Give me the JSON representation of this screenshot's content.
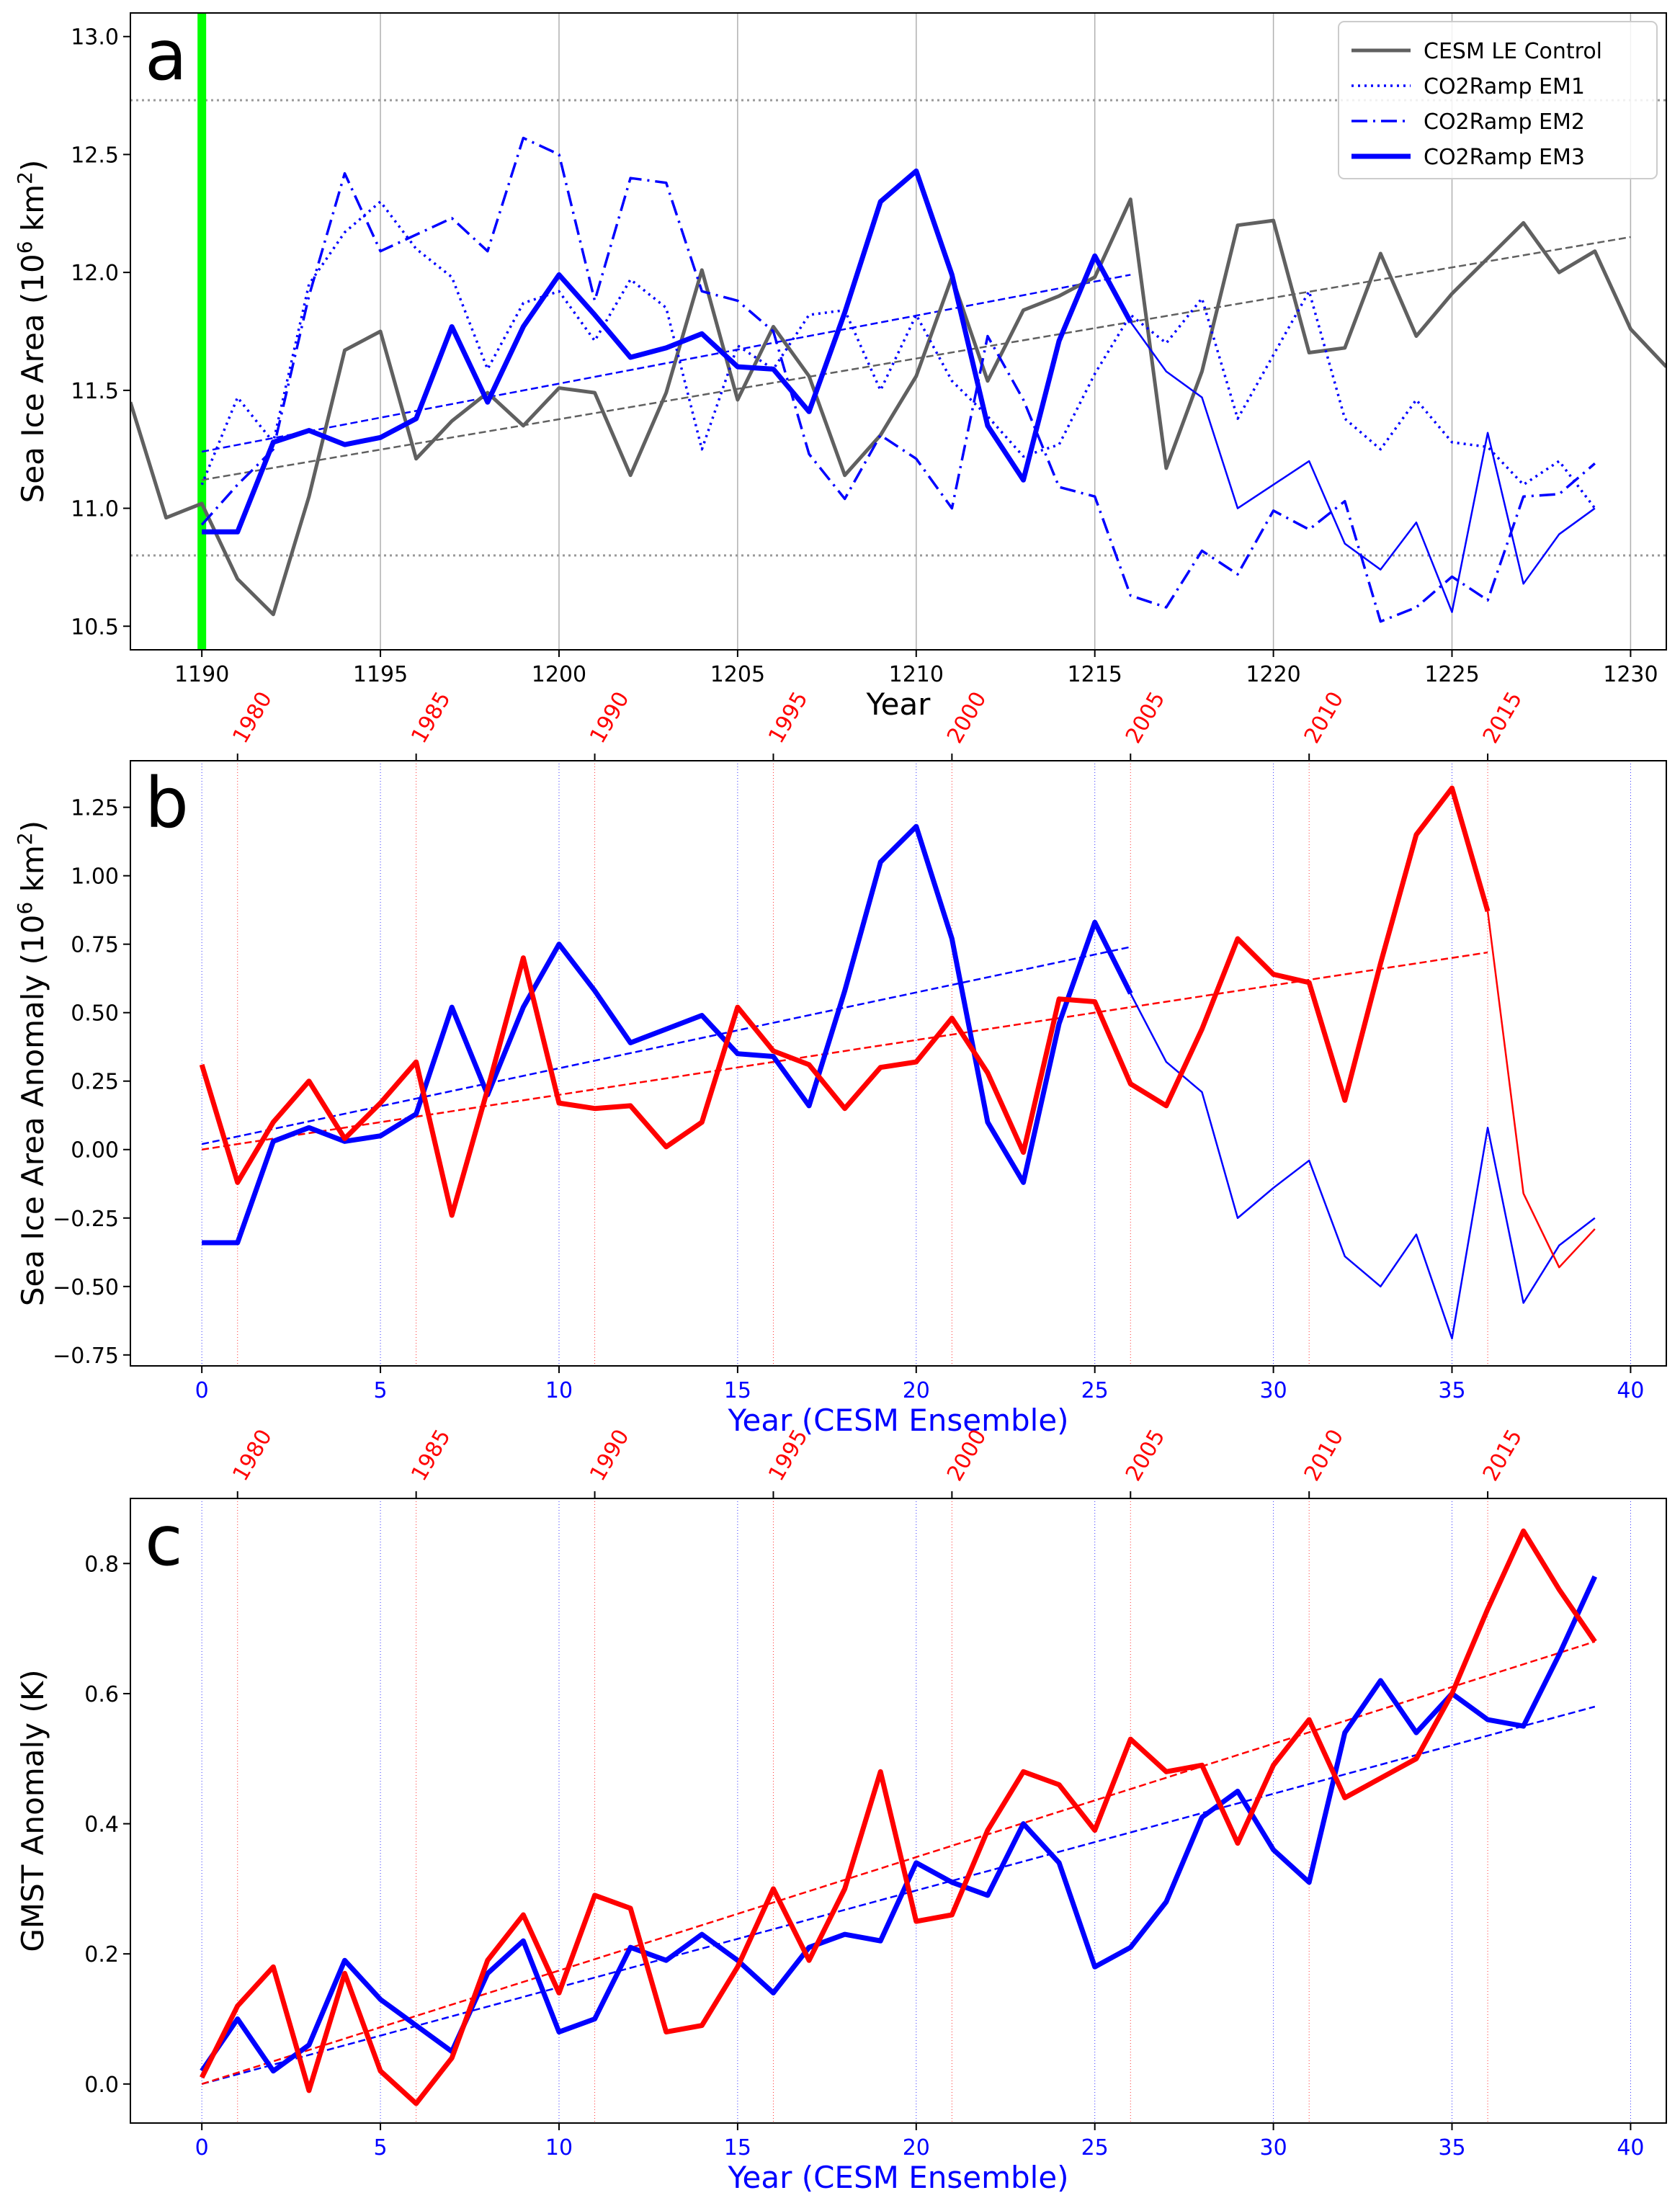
{
  "colors": {
    "control": "#606060",
    "blue": "#0000ff",
    "red": "#ff0000",
    "green": "#00ff00",
    "dotted_gray": "#999999",
    "grid": "#b0b0b0"
  },
  "chart_data": [
    {
      "panel": "a",
      "type": "line",
      "xlabel": "Year",
      "ylabel": "Sea Ice Area (10⁶ km²)",
      "ylabel_base": "Sea Ice Area (10",
      "ylabel_sup": "6",
      "ylabel_mid": " km",
      "ylabel_sup2": "2",
      "ylabel_end": ")",
      "xlim": [
        1188,
        1231
      ],
      "ylim": [
        10.4,
        13.1
      ],
      "xticks": [
        1190,
        1195,
        1200,
        1205,
        1210,
        1215,
        1220,
        1225,
        1230
      ],
      "yticks": [
        10.5,
        11.0,
        11.5,
        12.0,
        12.5,
        13.0
      ],
      "ytick_labels": [
        "10.5",
        "11.0",
        "11.5",
        "12.0",
        "12.5",
        "13.0"
      ],
      "grid": "vertical",
      "legend_position": "top-right",
      "vline_green": 1190,
      "hlines_dotted": [
        12.73,
        10.8
      ],
      "series": [
        {
          "name": "CESM LE Control",
          "style": "solid",
          "color": "control",
          "x": [
            1188,
            1189,
            1190,
            1191,
            1192,
            1193,
            1194,
            1195,
            1196,
            1197,
            1198,
            1199,
            1200,
            1201,
            1202,
            1203,
            1204,
            1205,
            1206,
            1207,
            1208,
            1209,
            1210,
            1211,
            1212,
            1213,
            1214,
            1215,
            1216,
            1217,
            1218,
            1219,
            1220,
            1221,
            1222,
            1223,
            1224,
            1225,
            1226,
            1227,
            1228,
            1229,
            1230,
            1231
          ],
          "y": [
            11.45,
            10.96,
            11.02,
            10.7,
            10.55,
            11.05,
            11.67,
            11.75,
            11.21,
            11.37,
            11.49,
            11.35,
            11.51,
            11.49,
            11.14,
            11.49,
            12.01,
            11.46,
            11.77,
            11.56,
            11.14,
            11.31,
            11.56,
            11.98,
            11.54,
            11.84,
            11.9,
            11.98,
            12.31,
            11.17,
            11.58,
            12.2,
            12.22,
            11.66,
            11.68,
            12.08,
            11.73,
            11.91,
            12.06,
            12.21,
            12.0,
            12.09,
            11.76,
            11.6
          ]
        },
        {
          "name": "CO2Ramp EM1",
          "style": "dotted",
          "color": "blue",
          "x": [
            1190,
            1191,
            1192,
            1193,
            1194,
            1195,
            1196,
            1197,
            1198,
            1199,
            1200,
            1201,
            1202,
            1203,
            1204,
            1205,
            1206,
            1207,
            1208,
            1209,
            1210,
            1211,
            1212,
            1213,
            1214,
            1215,
            1216,
            1217,
            1218,
            1219,
            1220,
            1221,
            1222,
            1223,
            1224,
            1225,
            1226,
            1227,
            1228,
            1229
          ],
          "y": [
            11.1,
            11.47,
            11.28,
            11.95,
            12.17,
            12.3,
            12.1,
            11.98,
            11.59,
            11.87,
            11.92,
            11.71,
            11.97,
            11.85,
            11.25,
            11.69,
            11.59,
            11.82,
            11.84,
            11.5,
            11.82,
            11.54,
            11.39,
            11.22,
            11.27,
            11.57,
            11.82,
            11.7,
            11.89,
            11.38,
            11.65,
            11.92,
            11.38,
            11.25,
            11.46,
            11.28,
            11.26,
            11.1,
            11.2,
            11.0
          ]
        },
        {
          "name": "CO2Ramp EM2",
          "style": "dashdot",
          "color": "blue",
          "x": [
            1190,
            1191,
            1192,
            1193,
            1194,
            1195,
            1196,
            1197,
            1198,
            1199,
            1200,
            1201,
            1202,
            1203,
            1204,
            1205,
            1206,
            1207,
            1208,
            1209,
            1210,
            1211,
            1212,
            1213,
            1214,
            1215,
            1216,
            1217,
            1218,
            1219,
            1220,
            1221,
            1222,
            1223,
            1224,
            1225,
            1226,
            1227,
            1228,
            1229
          ],
          "y": [
            10.93,
            11.1,
            11.25,
            11.9,
            12.42,
            12.09,
            12.16,
            12.23,
            12.09,
            12.57,
            12.5,
            11.88,
            12.4,
            12.38,
            11.92,
            11.88,
            11.75,
            11.23,
            11.04,
            11.31,
            11.21,
            11.0,
            11.73,
            11.46,
            11.09,
            11.05,
            10.63,
            10.58,
            10.82,
            10.72,
            10.99,
            10.91,
            11.03,
            10.52,
            10.58,
            10.71,
            10.61,
            11.05,
            11.06,
            11.19
          ]
        },
        {
          "name": "CO2Ramp EM3",
          "style": "thick",
          "color": "blue",
          "thick_until": 1216,
          "x": [
            1190,
            1191,
            1192,
            1193,
            1194,
            1195,
            1196,
            1197,
            1198,
            1199,
            1200,
            1201,
            1202,
            1203,
            1204,
            1205,
            1206,
            1207,
            1208,
            1209,
            1210,
            1211,
            1212,
            1213,
            1214,
            1215,
            1216,
            1217,
            1218,
            1219,
            1220,
            1221,
            1222,
            1223,
            1224,
            1225,
            1226,
            1227,
            1228,
            1229
          ],
          "y": [
            10.9,
            10.9,
            11.28,
            11.33,
            11.27,
            11.3,
            11.38,
            11.77,
            11.45,
            11.77,
            11.99,
            11.82,
            11.64,
            11.68,
            11.74,
            11.6,
            11.59,
            11.41,
            11.83,
            12.3,
            12.43,
            11.99,
            11.35,
            11.12,
            11.71,
            12.07,
            11.79,
            11.58,
            11.47,
            11.0,
            11.1,
            11.2,
            10.85,
            10.74,
            10.94,
            10.56,
            11.32,
            10.68,
            10.89,
            11.0
          ]
        }
      ],
      "trendlines": [
        {
          "color": "control",
          "x": [
            1190,
            1230
          ],
          "y": [
            11.12,
            12.15
          ]
        },
        {
          "color": "blue",
          "x": [
            1190,
            1216
          ],
          "y": [
            11.24,
            11.99
          ]
        }
      ]
    },
    {
      "panel": "b",
      "type": "line",
      "xlabel": "Year (CESM Ensemble)",
      "ylabel": "Sea Ice Area Anomaly (10⁶ km²)",
      "ylabel_base": "Sea Ice Area Anomaly (10",
      "ylabel_sup": "6",
      "ylabel_mid": " km",
      "ylabel_sup2": "2",
      "ylabel_end": ")",
      "xlim": [
        -2,
        41
      ],
      "ylim": [
        -0.79,
        1.42
      ],
      "xticks": [
        0,
        5,
        10,
        15,
        20,
        25,
        30,
        35,
        40
      ],
      "yticks": [
        -0.75,
        -0.5,
        -0.25,
        0.0,
        0.25,
        0.5,
        0.75,
        1.0,
        1.25
      ],
      "ytick_labels": [
        "−0.75",
        "−0.50",
        "−0.25",
        "0.00",
        "0.25",
        "0.50",
        "0.75",
        "1.00",
        "1.25"
      ],
      "top_axis_labels": [
        "1980",
        "1985",
        "1990",
        "1995",
        "2000",
        "2005",
        "2010",
        "2015"
      ],
      "top_axis_positions": [
        1,
        6,
        11,
        16,
        21,
        26,
        31,
        36
      ],
      "series": [
        {
          "color": "blue",
          "thick_until": 26,
          "x": [
            0,
            1,
            2,
            3,
            4,
            5,
            6,
            7,
            8,
            9,
            10,
            11,
            12,
            13,
            14,
            15,
            16,
            17,
            18,
            19,
            20,
            21,
            22,
            23,
            24,
            25,
            26,
            27,
            28,
            29,
            30,
            31,
            32,
            33,
            34,
            35,
            36,
            37,
            38,
            39
          ],
          "y": [
            -0.34,
            -0.34,
            0.03,
            0.08,
            0.03,
            0.05,
            0.13,
            0.52,
            0.2,
            0.52,
            0.75,
            0.58,
            0.39,
            0.44,
            0.49,
            0.35,
            0.34,
            0.16,
            0.58,
            1.05,
            1.18,
            0.77,
            0.1,
            -0.12,
            0.46,
            0.83,
            0.57,
            0.32,
            0.21,
            -0.25,
            -0.14,
            -0.04,
            -0.39,
            -0.5,
            -0.31,
            -0.69,
            0.08,
            -0.56,
            -0.35,
            -0.25
          ]
        },
        {
          "color": "red",
          "thick_until": 36,
          "x": [
            0,
            1,
            2,
            3,
            4,
            5,
            6,
            7,
            8,
            9,
            10,
            11,
            12,
            13,
            14,
            15,
            16,
            17,
            18,
            19,
            20,
            21,
            22,
            23,
            24,
            25,
            26,
            27,
            28,
            29,
            30,
            31,
            32,
            33,
            34,
            35,
            36,
            37,
            38,
            39
          ],
          "y": [
            0.31,
            -0.12,
            0.1,
            0.25,
            0.04,
            0.17,
            0.32,
            -0.24,
            0.22,
            0.7,
            0.17,
            0.15,
            0.16,
            0.01,
            0.1,
            0.52,
            0.36,
            0.31,
            0.15,
            0.3,
            0.32,
            0.48,
            0.28,
            -0.01,
            0.55,
            0.54,
            0.24,
            0.16,
            0.44,
            0.77,
            0.64,
            0.61,
            0.18,
            0.68,
            1.15,
            1.32,
            0.87,
            -0.16,
            -0.43,
            -0.29
          ]
        }
      ],
      "trendlines": [
        {
          "color": "blue",
          "x": [
            0,
            26
          ],
          "y": [
            0.02,
            0.74
          ]
        },
        {
          "color": "red",
          "x": [
            0,
            36
          ],
          "y": [
            0.0,
            0.72
          ]
        }
      ]
    },
    {
      "panel": "c",
      "type": "line",
      "xlabel": "Year (CESM Ensemble)",
      "ylabel": "GMST Anomaly (K)",
      "xlim": [
        -2,
        41
      ],
      "ylim": [
        -0.06,
        0.9
      ],
      "xticks": [
        0,
        5,
        10,
        15,
        20,
        25,
        30,
        35,
        40
      ],
      "yticks": [
        0.0,
        0.2,
        0.4,
        0.6,
        0.8
      ],
      "ytick_labels": [
        "0.0",
        "0.2",
        "0.4",
        "0.6",
        "0.8"
      ],
      "top_axis_labels": [
        "1980",
        "1985",
        "1990",
        "1995",
        "2000",
        "2005",
        "2010",
        "2015"
      ],
      "top_axis_positions": [
        1,
        6,
        11,
        16,
        21,
        26,
        31,
        36
      ],
      "series": [
        {
          "color": "blue",
          "x": [
            0,
            1,
            2,
            3,
            4,
            5,
            6,
            7,
            8,
            9,
            10,
            11,
            12,
            13,
            14,
            15,
            16,
            17,
            18,
            19,
            20,
            21,
            22,
            23,
            24,
            25,
            26,
            27,
            28,
            29,
            30,
            31,
            32,
            33,
            34,
            35,
            36,
            37,
            38,
            39
          ],
          "y": [
            0.02,
            0.1,
            0.02,
            0.06,
            0.19,
            0.13,
            0.09,
            0.05,
            0.17,
            0.22,
            0.08,
            0.1,
            0.21,
            0.19,
            0.23,
            0.19,
            0.14,
            0.21,
            0.23,
            0.22,
            0.34,
            0.31,
            0.29,
            0.4,
            0.34,
            0.18,
            0.21,
            0.28,
            0.41,
            0.45,
            0.36,
            0.31,
            0.54,
            0.62,
            0.54,
            0.6,
            0.56,
            0.55,
            0.66,
            0.78
          ]
        },
        {
          "color": "red",
          "x": [
            0,
            1,
            2,
            3,
            4,
            5,
            6,
            7,
            8,
            9,
            10,
            11,
            12,
            13,
            14,
            15,
            16,
            17,
            18,
            19,
            20,
            21,
            22,
            23,
            24,
            25,
            26,
            27,
            28,
            29,
            30,
            31,
            32,
            33,
            34,
            35,
            36,
            37,
            38,
            39
          ],
          "y": [
            0.01,
            0.12,
            0.18,
            -0.01,
            0.17,
            0.02,
            -0.03,
            0.04,
            0.19,
            0.26,
            0.14,
            0.29,
            0.27,
            0.08,
            0.09,
            0.18,
            0.3,
            0.19,
            0.3,
            0.48,
            0.25,
            0.26,
            0.39,
            0.48,
            0.46,
            0.39,
            0.53,
            0.48,
            0.49,
            0.37,
            0.49,
            0.56,
            0.44,
            0.47,
            0.5,
            0.6,
            0.73,
            0.85,
            0.76,
            0.68
          ]
        }
      ],
      "trendlines": [
        {
          "color": "blue",
          "x": [
            0,
            39
          ],
          "y": [
            0.0,
            0.58
          ]
        },
        {
          "color": "red",
          "x": [
            0,
            39
          ],
          "y": [
            0.0,
            0.68
          ]
        }
      ]
    }
  ]
}
